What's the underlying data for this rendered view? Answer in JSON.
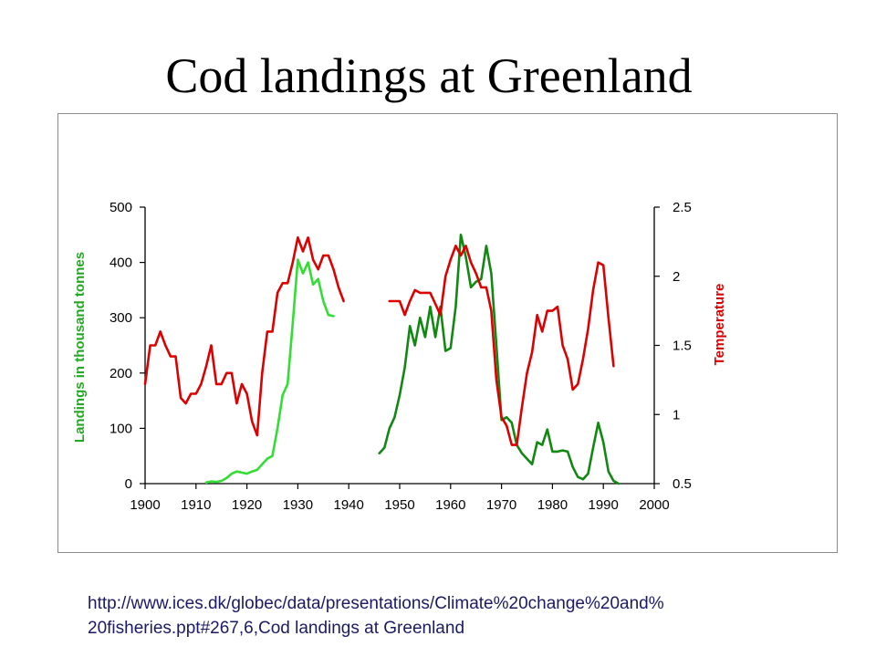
{
  "slide": {
    "title": "Cod landings at Greenland",
    "url_line1": "http://www.ices.dk/globec/data/presentations/Climate%20change%20and%",
    "url_line2": "20fisheries.ppt#267,6,Cod  landings  at Greenland"
  },
  "chart_data": {
    "type": "line",
    "title": "Cod landings at Greenland",
    "xlabel": "",
    "ylabel": "Landings in thousand tonnes",
    "y2label": "Temperature",
    "xlim": [
      1900,
      2000
    ],
    "ylim": [
      0,
      500
    ],
    "y2lim": [
      0.5,
      2.5
    ],
    "x_ticks": [
      1900,
      1910,
      1920,
      1930,
      1940,
      1950,
      1960,
      1970,
      1980,
      1990,
      2000
    ],
    "y_ticks": [
      0,
      100,
      200,
      300,
      400,
      500
    ],
    "y2_ticks": [
      0.5,
      1,
      1.5,
      2,
      2.5
    ],
    "y2_tick_labels": [
      "0.5",
      "1",
      "1.5",
      "2",
      "2.5"
    ],
    "grid": false,
    "colors": {
      "landings_early": "#33dd33",
      "landings_late": "#118811",
      "temperature": "#dd0000",
      "ylabel": "#22aa22",
      "y2label": "#dd0000"
    },
    "series": [
      {
        "key": "landings_early",
        "axis": "left",
        "x": [
          1912,
          1913,
          1914,
          1915,
          1916,
          1917,
          1918,
          1919,
          1920,
          1921,
          1922,
          1923,
          1924,
          1925,
          1926,
          1927,
          1928,
          1929,
          1930,
          1931,
          1932,
          1933,
          1934,
          1935,
          1936,
          1937
        ],
        "y": [
          2,
          4,
          3,
          5,
          10,
          18,
          22,
          20,
          18,
          22,
          25,
          35,
          45,
          50,
          100,
          160,
          180,
          290,
          405,
          380,
          400,
          360,
          370,
          330,
          305,
          303
        ]
      },
      {
        "key": "landings_late",
        "axis": "left",
        "x": [
          1946,
          1947,
          1948,
          1949,
          1950,
          1951,
          1952,
          1953,
          1954,
          1955,
          1956,
          1957,
          1958,
          1959,
          1960,
          1961,
          1962,
          1963,
          1964,
          1965,
          1966,
          1967,
          1968,
          1969,
          1970,
          1971,
          1972,
          1973,
          1974,
          1975,
          1976,
          1977,
          1978,
          1979,
          1980,
          1981,
          1982,
          1983,
          1984,
          1985,
          1986,
          1987,
          1988,
          1989,
          1990,
          1991,
          1992,
          1993
        ],
        "y": [
          55,
          65,
          100,
          120,
          160,
          210,
          285,
          250,
          300,
          265,
          320,
          265,
          320,
          240,
          245,
          320,
          450,
          410,
          355,
          365,
          370,
          430,
          380,
          250,
          115,
          120,
          110,
          70,
          55,
          45,
          35,
          75,
          70,
          98,
          58,
          58,
          60,
          58,
          30,
          12,
          8,
          18,
          65,
          110,
          75,
          22,
          5,
          0
        ]
      },
      {
        "key": "temperature",
        "axis": "right",
        "x": [
          1900,
          1901,
          1902,
          1903,
          1904,
          1905,
          1906,
          1907,
          1908,
          1909,
          1910,
          1911,
          1912,
          1913,
          1914,
          1915,
          1916,
          1917,
          1918,
          1919,
          1920,
          1921,
          1922,
          1923,
          1924,
          1925,
          1926,
          1927,
          1928,
          1929,
          1930,
          1931,
          1932,
          1933,
          1934,
          1935,
          1936,
          1937,
          1938,
          1939
        ],
        "y": [
          1.22,
          1.5,
          1.5,
          1.6,
          1.5,
          1.42,
          1.42,
          1.12,
          1.08,
          1.15,
          1.15,
          1.22,
          1.35,
          1.5,
          1.22,
          1.22,
          1.3,
          1.3,
          1.08,
          1.22,
          1.15,
          0.95,
          0.85,
          1.3,
          1.6,
          1.6,
          1.88,
          1.95,
          1.95,
          2.1,
          2.28,
          2.18,
          2.28,
          2.12,
          2.05,
          2.15,
          2.15,
          2.05,
          1.92,
          1.82
        ]
      },
      {
        "key": "temperature_late",
        "axis": "right",
        "x": [
          1948,
          1949,
          1950,
          1951,
          1952,
          1953,
          1954,
          1955,
          1956,
          1957,
          1958,
          1959,
          1960,
          1961,
          1962,
          1963,
          1964,
          1965,
          1966,
          1967,
          1968,
          1969,
          1970,
          1971,
          1972,
          1973,
          1974,
          1975,
          1976,
          1977,
          1978,
          1979,
          1980,
          1981,
          1982,
          1983,
          1984,
          1985,
          1986,
          1987,
          1988,
          1989,
          1990,
          1991,
          1992
        ],
        "y": [
          1.82,
          1.82,
          1.82,
          1.72,
          1.82,
          1.9,
          1.88,
          1.88,
          1.88,
          1.8,
          1.72,
          2.0,
          2.12,
          2.22,
          2.15,
          2.22,
          2.1,
          2.02,
          1.92,
          1.92,
          1.75,
          1.25,
          0.98,
          0.92,
          0.78,
          0.78,
          1.05,
          1.3,
          1.45,
          1.72,
          1.6,
          1.75,
          1.75,
          1.78,
          1.5,
          1.4,
          1.18,
          1.22,
          1.4,
          1.62,
          1.9,
          2.1,
          2.08,
          1.7,
          1.35
        ]
      }
    ]
  }
}
